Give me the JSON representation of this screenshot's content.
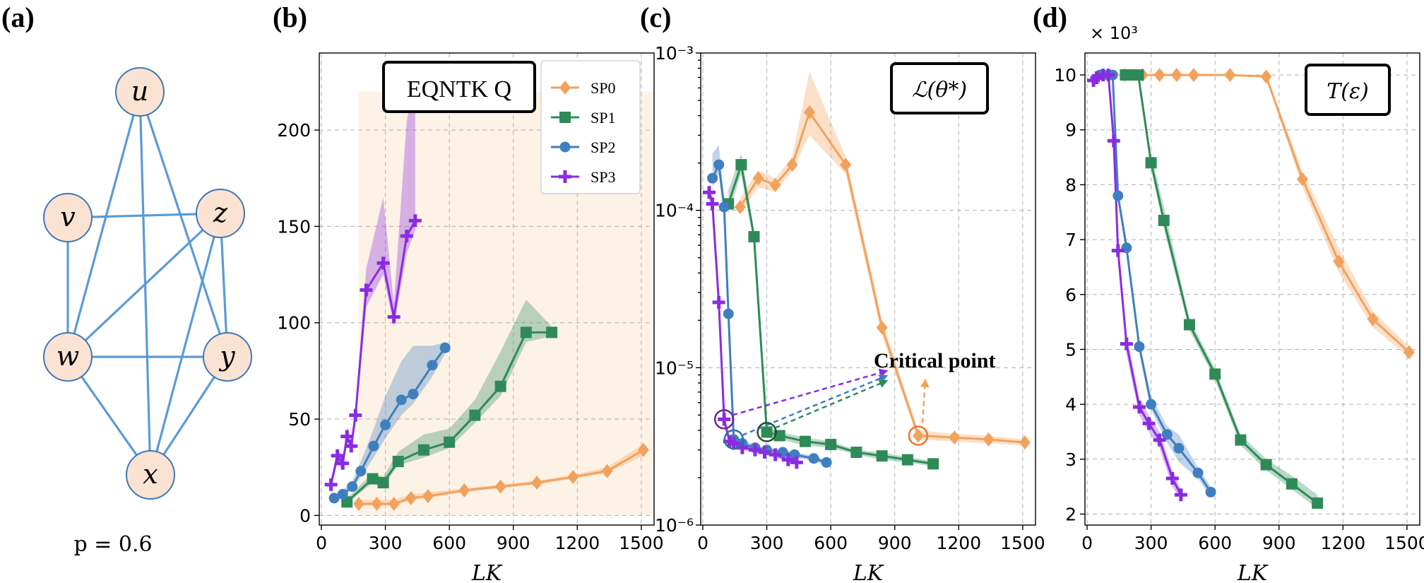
{
  "panel_labels": {
    "a": "(a)",
    "b": "(b)",
    "c": "(c)",
    "d": "(d)"
  },
  "graph": {
    "nodes": [
      {
        "id": "u",
        "label": "u"
      },
      {
        "id": "v",
        "label": "v"
      },
      {
        "id": "z",
        "label": "z"
      },
      {
        "id": "w",
        "label": "w"
      },
      {
        "id": "y",
        "label": "y"
      },
      {
        "id": "x",
        "label": "x"
      }
    ],
    "edges": [
      [
        "u",
        "w"
      ],
      [
        "u",
        "x"
      ],
      [
        "u",
        "y"
      ],
      [
        "v",
        "z"
      ],
      [
        "v",
        "w"
      ],
      [
        "z",
        "w"
      ],
      [
        "z",
        "x"
      ],
      [
        "z",
        "y"
      ],
      [
        "w",
        "y"
      ],
      [
        "w",
        "x"
      ],
      [
        "y",
        "x"
      ]
    ],
    "caption": "p = 0.6",
    "node_fill": "#fbe3d3",
    "edge_color": "#5b9bd5"
  },
  "colors": {
    "SP0": "#f2a25c",
    "SP1": "#2e8b57",
    "SP2": "#3f7fbf",
    "SP3": "#8a2be2"
  },
  "chart_data": [
    {
      "id": "b",
      "type": "line",
      "title": "EQNTK Q",
      "xlabel": "LK",
      "ylabel": "",
      "xlim": [
        -10,
        1560
      ],
      "ylim": [
        -5,
        240
      ],
      "xticks": [
        0,
        300,
        600,
        900,
        1200,
        1500
      ],
      "yticks": [
        0,
        50,
        100,
        150,
        200
      ],
      "legend": {
        "position": "top-right",
        "entries": [
          "SP0",
          "SP1",
          "SP2",
          "SP3"
        ]
      },
      "shaded_region": {
        "series": "SP0",
        "x": [
          175,
          1560
        ],
        "y": [
          0,
          220
        ]
      },
      "series": [
        {
          "name": "SP0",
          "marker": "diamond",
          "x": [
            175,
            260,
            340,
            420,
            500,
            670,
            840,
            1010,
            1180,
            1340,
            1510
          ],
          "y": [
            6,
            6,
            6,
            9,
            10,
            13,
            15,
            17,
            20,
            23,
            34
          ],
          "band_lo": [
            5,
            5,
            5,
            8,
            9,
            12,
            14,
            16,
            19,
            22,
            31
          ],
          "band_hi": [
            8,
            8,
            8,
            11,
            12,
            14,
            16,
            18,
            21,
            25,
            37
          ]
        },
        {
          "name": "SP1",
          "marker": "square",
          "x": [
            120,
            240,
            290,
            360,
            480,
            600,
            720,
            840,
            960,
            1080
          ],
          "y": [
            7,
            19,
            17,
            28,
            34,
            38,
            52,
            67,
            95,
            95
          ],
          "band_lo": [
            6,
            17,
            15,
            26,
            30,
            35,
            48,
            62,
            90,
            93
          ],
          "band_hi": [
            9,
            22,
            20,
            33,
            42,
            45,
            60,
            85,
            112,
            98
          ]
        },
        {
          "name": "SP2",
          "marker": "circle",
          "x": [
            60,
            100,
            145,
            185,
            245,
            300,
            375,
            430,
            520,
            580
          ],
          "y": [
            9,
            11,
            15,
            23,
            36,
            47,
            60,
            63,
            78,
            87
          ],
          "band_lo": [
            8,
            10,
            13,
            20,
            30,
            40,
            52,
            58,
            72,
            84
          ],
          "band_hi": [
            10,
            13,
            18,
            28,
            45,
            62,
            80,
            88,
            88,
            90
          ]
        },
        {
          "name": "SP3",
          "marker": "plus",
          "x": [
            45,
            75,
            100,
            120,
            140,
            160,
            210,
            290,
            340,
            400,
            440
          ],
          "y": [
            16,
            31,
            27,
            41,
            36,
            52,
            117,
            131,
            103,
            145,
            153
          ],
          "band_lo": [
            14,
            27,
            24,
            37,
            33,
            48,
            108,
            125,
            98,
            136,
            148
          ],
          "band_hi": [
            18,
            35,
            30,
            46,
            40,
            56,
            128,
            165,
            110,
            205,
            225
          ]
        }
      ]
    },
    {
      "id": "c",
      "type": "line",
      "title": "ℒ(θ*)",
      "xlabel": "LK",
      "ylabel": "",
      "yscale": "log",
      "xlim": [
        -10,
        1560
      ],
      "ylim": [
        1e-06,
        0.001
      ],
      "xticks": [
        0,
        300,
        600,
        900,
        1200,
        1500
      ],
      "ytick_labels": [
        "10⁻⁶",
        "10⁻⁵",
        "10⁻⁴",
        "10⁻³"
      ],
      "annotation": {
        "text": "Critical point",
        "arrows": true
      },
      "series": [
        {
          "name": "SP0",
          "marker": "diamond",
          "x": [
            175,
            260,
            340,
            420,
            500,
            670,
            840,
            1010,
            1180,
            1340,
            1510
          ],
          "y": [
            0.000105,
            0.00016,
            0.000145,
            0.000195,
            0.00042,
            0.000195,
            1.8e-05,
            3.7e-06,
            3.6e-06,
            3.5e-06,
            3.35e-06
          ],
          "band_lo": [
            9.5e-05,
            0.00014,
            0.00013,
            0.00018,
            0.0003,
            0.00017,
            1.6e-05,
            3.5e-06,
            3.4e-06,
            3.3e-06,
            3.2e-06
          ],
          "band_hi": [
            0.00012,
            0.00018,
            0.00016,
            0.00022,
            0.00076,
            0.00022,
            2e-05,
            4e-06,
            3.8e-06,
            3.7e-06,
            3.5e-06
          ]
        },
        {
          "name": "SP1",
          "marker": "square",
          "x": [
            120,
            180,
            240,
            300,
            360,
            480,
            600,
            720,
            840,
            960,
            1080
          ],
          "y": [
            0.00011,
            0.000195,
            6.8e-05,
            3.9e-06,
            3.7e-06,
            3.4e-06,
            3.25e-06,
            2.9e-06,
            2.75e-06,
            2.6e-06,
            2.45e-06
          ],
          "band_lo": [
            9.5e-05,
            0.00017,
            6.2e-05,
            3.6e-06,
            3.5e-06,
            3.2e-06,
            3.1e-06,
            2.8e-06,
            2.6e-06,
            2.5e-06,
            2.35e-06
          ],
          "band_hi": [
            0.000135,
            0.00023,
            7.5e-05,
            4.2e-06,
            3.9e-06,
            3.6e-06,
            3.4e-06,
            3e-06,
            2.9e-06,
            2.7e-06,
            2.55e-06
          ]
        },
        {
          "name": "SP2",
          "marker": "circle",
          "x": [
            45,
            75,
            100,
            120,
            145,
            185,
            245,
            300,
            375,
            430,
            520,
            580
          ],
          "y": [
            0.00016,
            0.000195,
            0.000105,
            2.2e-05,
            3.5e-06,
            3.3e-06,
            3.1e-06,
            3e-06,
            2.9e-06,
            2.8e-06,
            2.65e-06,
            2.5e-06
          ],
          "band_lo": [
            0.00014,
            0.00017,
            9e-05,
            2e-05,
            3.3e-06,
            3.1e-06,
            3e-06,
            2.9e-06,
            2.8e-06,
            2.7e-06,
            2.55e-06,
            2.4e-06
          ],
          "band_hi": [
            0.00023,
            0.00026,
            0.00012,
            2.4e-05,
            3.7e-06,
            3.5e-06,
            3.2e-06,
            3.1e-06,
            3e-06,
            2.9e-06,
            2.75e-06,
            2.6e-06
          ]
        },
        {
          "name": "SP3",
          "marker": "plus",
          "x": [
            30,
            45,
            75,
            100,
            125,
            145,
            185,
            245,
            290,
            340,
            400,
            440
          ],
          "y": [
            0.00013,
            0.00011,
            2.6e-05,
            4.7e-06,
            3.4e-06,
            3.3e-06,
            3.1e-06,
            3e-06,
            2.9e-06,
            2.8e-06,
            2.6e-06,
            2.5e-06
          ],
          "band_lo": [
            0.000115,
            0.0001,
            2.3e-05,
            4.3e-06,
            3.2e-06,
            3.1e-06,
            3e-06,
            2.9e-06,
            2.8e-06,
            2.7e-06,
            2.5e-06,
            2.4e-06
          ],
          "band_hi": [
            0.000145,
            0.000125,
            2.9e-05,
            5e-06,
            3.6e-06,
            3.5e-06,
            3.2e-06,
            3.1e-06,
            3e-06,
            2.9e-06,
            2.7e-06,
            2.6e-06
          ]
        }
      ]
    },
    {
      "id": "d",
      "type": "line",
      "title": "T(ε)",
      "xlabel": "LK",
      "ylabel": "",
      "scale_label": "× 10³",
      "xlim": [
        -10,
        1560
      ],
      "ylim": [
        1.8,
        10.4
      ],
      "xticks": [
        0,
        300,
        600,
        900,
        1200,
        1500
      ],
      "yticks": [
        2,
        3,
        4,
        5,
        6,
        7,
        8,
        9,
        10
      ],
      "series": [
        {
          "name": "SP0",
          "marker": "diamond",
          "x": [
            175,
            260,
            340,
            420,
            500,
            670,
            840,
            1010,
            1180,
            1340,
            1510
          ],
          "y": [
            10,
            10,
            10,
            10,
            10,
            10,
            9.97,
            8.1,
            6.6,
            5.55,
            4.95
          ],
          "band_lo": [
            10,
            10,
            10,
            10,
            10,
            10,
            9.95,
            7.95,
            6.4,
            5.4,
            4.85
          ],
          "band_hi": [
            10,
            10,
            10,
            10,
            10,
            10,
            10,
            8.25,
            6.85,
            5.7,
            5.05
          ]
        },
        {
          "name": "SP1",
          "marker": "square",
          "x": [
            180,
            200,
            240,
            300,
            360,
            480,
            600,
            720,
            840,
            960,
            1080
          ],
          "y": [
            10,
            10,
            10,
            8.4,
            7.35,
            5.45,
            4.55,
            3.35,
            2.9,
            2.55,
            2.2
          ],
          "band_lo": [
            10,
            10,
            10,
            8.3,
            7.2,
            5.35,
            4.45,
            3.25,
            2.8,
            2.45,
            2.1
          ],
          "band_hi": [
            10,
            10,
            10,
            8.55,
            7.6,
            5.55,
            4.65,
            3.45,
            3.0,
            2.7,
            2.35
          ]
        },
        {
          "name": "SP2",
          "marker": "circle",
          "x": [
            60,
            75,
            100,
            120,
            145,
            185,
            245,
            300,
            375,
            430,
            520,
            580
          ],
          "y": [
            10,
            10,
            10,
            10,
            7.8,
            6.85,
            5.05,
            4.0,
            3.45,
            3.2,
            2.75,
            2.4
          ],
          "band_lo": [
            10,
            10,
            10,
            10,
            7.7,
            6.7,
            4.95,
            3.9,
            3.3,
            2.95,
            2.65,
            2.3
          ],
          "band_hi": [
            10,
            10,
            10,
            10,
            7.9,
            7.0,
            5.15,
            4.15,
            3.6,
            3.45,
            2.85,
            2.5
          ]
        },
        {
          "name": "SP3",
          "marker": "plus",
          "x": [
            30,
            45,
            75,
            100,
            125,
            145,
            185,
            245,
            290,
            340,
            400,
            440
          ],
          "y": [
            9.9,
            9.95,
            10,
            10,
            8.8,
            6.8,
            5.1,
            3.95,
            3.65,
            3.35,
            2.65,
            2.35
          ],
          "band_lo": [
            9.85,
            9.9,
            10,
            10,
            8.6,
            6.6,
            4.9,
            3.8,
            3.5,
            3.2,
            2.5,
            2.25
          ],
          "band_hi": [
            9.95,
            10,
            10,
            10,
            9.0,
            7.0,
            5.3,
            4.1,
            3.8,
            3.5,
            2.8,
            2.45
          ]
        }
      ]
    }
  ]
}
